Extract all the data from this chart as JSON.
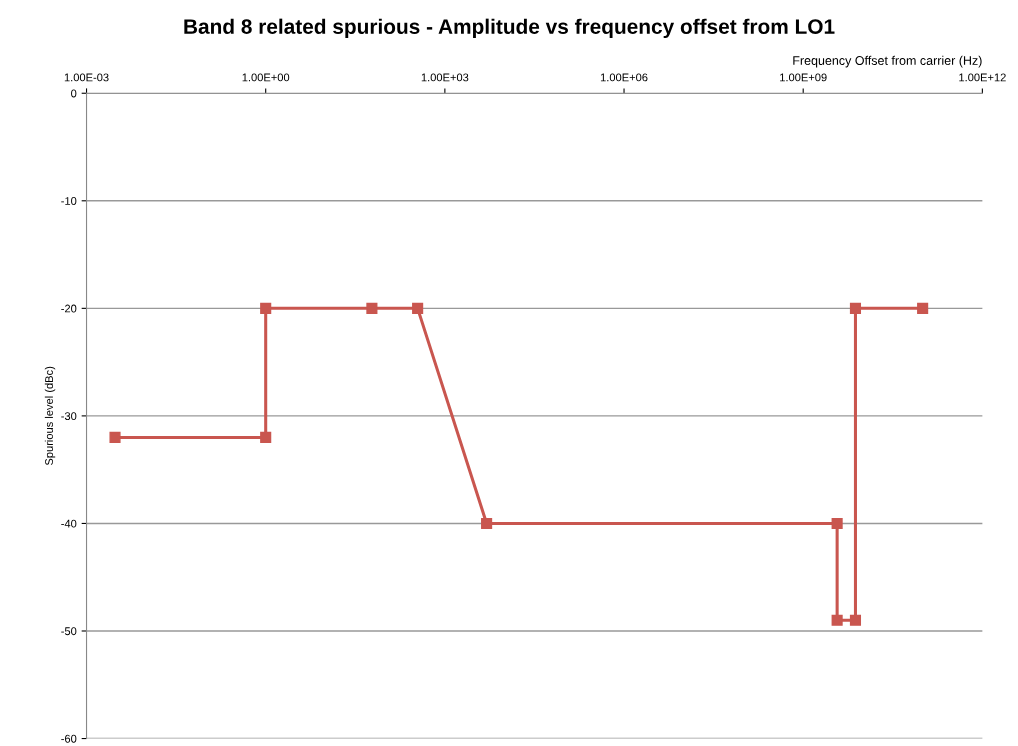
{
  "chart_data": {
    "type": "line",
    "title": "Band 8 related spurious - Amplitude vs frequency offset from LO1",
    "xlabel": "Frequency Offset from carrier (Hz)",
    "ylabel": "Spurious level (dBc)",
    "log": "x",
    "xlim": [
      0.001,
      1000000000000
    ],
    "xticks": [
      {
        "value": 0.001,
        "label": "1.00E-03"
      },
      {
        "value": 1,
        "label": "1.00E+00"
      },
      {
        "value": 1000,
        "label": "1.00E+03"
      },
      {
        "value": 1000000,
        "label": "1.00E+06"
      },
      {
        "value": 1000000000,
        "label": "1.00E+09"
      },
      {
        "value": 1000000000000,
        "label": "1.00E+12"
      }
    ],
    "ylim": [
      -60,
      0
    ],
    "yticks": [
      -60,
      -50,
      -40,
      -30,
      -20,
      -10,
      0
    ],
    "grid": "y",
    "marker": "square",
    "line_style": "solid",
    "series": [
      {
        "color": "#c9564f",
        "x": [
          0.003,
          1,
          1,
          60,
          350,
          5000,
          3700000000,
          3700000000,
          7500000000,
          7500000000,
          100000000000
        ],
        "values": [
          -32,
          -32,
          -20,
          -20,
          -20,
          -40,
          -40,
          -49,
          -49,
          -20,
          -20
        ]
      }
    ]
  }
}
